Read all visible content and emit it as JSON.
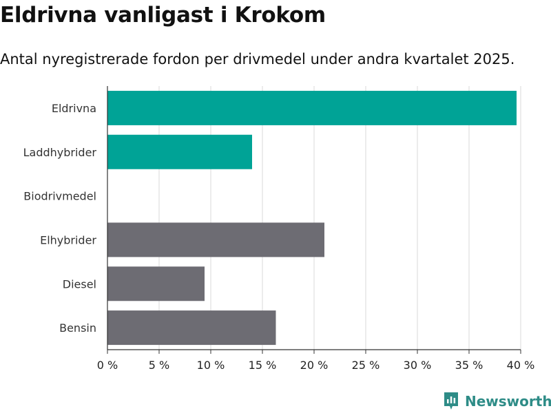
{
  "title": "Eldrivna vanligast i Krokom",
  "subtitle": "Antal nyregistrerade fordon per drivmedel under andra kvartalet 2025.",
  "brand": "Newsworthy",
  "colors": {
    "highlight": "#00a396",
    "neutral": "#6d6c73",
    "grid": "#d9d9d9",
    "brand": "#2e8c87"
  },
  "chart_data": {
    "type": "bar",
    "orientation": "horizontal",
    "categories": [
      "Eldrivna",
      "Laddhybrider",
      "Biodrivmedel",
      "Elhybrider",
      "Diesel",
      "Bensin"
    ],
    "values": [
      39.6,
      14.0,
      0,
      21.0,
      9.4,
      16.3
    ],
    "highlighted": [
      true,
      true,
      false,
      false,
      false,
      false
    ],
    "xlim": [
      0,
      40
    ],
    "xticks": [
      0,
      5,
      10,
      15,
      20,
      25,
      30,
      35,
      40
    ],
    "xtick_labels": [
      "0 %",
      "5 %",
      "10 %",
      "15 %",
      "20 %",
      "25 %",
      "30 %",
      "35 %",
      "40 %"
    ],
    "grid": true,
    "legend": "none"
  }
}
